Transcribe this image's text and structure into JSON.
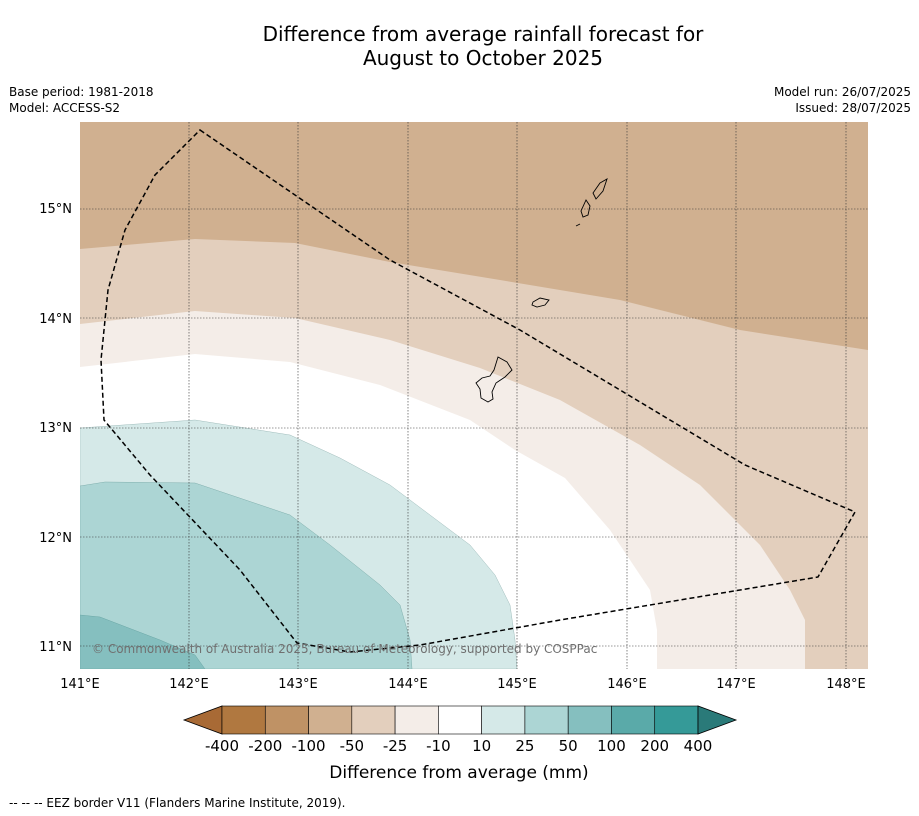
{
  "title_line1": "Difference from average rainfall forecast for",
  "title_line2": "August to October 2025",
  "base_period": "Base period: 1981-2018",
  "model": "Model: ACCESS-S2",
  "model_run": "Model run: 26/07/2025",
  "issued": "Issued: 28/07/2025",
  "copyright": "© Commonwealth of Australia 2025, Bureau of Meteorology, supported by COSPPac",
  "lat_labels": [
    "15°N",
    "14°N",
    "13°N",
    "12°N",
    "11°N"
  ],
  "lon_labels": [
    "141°E",
    "142°E",
    "143°E",
    "144°E",
    "145°E",
    "146°E",
    "147°E",
    "148°E"
  ],
  "colorbar": {
    "title": "Difference from average (mm)",
    "ticks": [
      "-400",
      "-200",
      "-100",
      "-50",
      "-25",
      "-10",
      "10",
      "25",
      "50",
      "100",
      "200",
      "400"
    ],
    "colors": [
      "#a86a35",
      "#b07840",
      "#bf9265",
      "#d0b090",
      "#e3cfbd",
      "#f4ede8",
      "#ffffff",
      "#d5e9e8",
      "#acd5d4",
      "#85bfbf",
      "#5aaaa9",
      "#359a98",
      "#2a7a79"
    ]
  },
  "footer": "--  --  -- EEZ border V11 (Flanders Marine Institute, 2019)."
}
